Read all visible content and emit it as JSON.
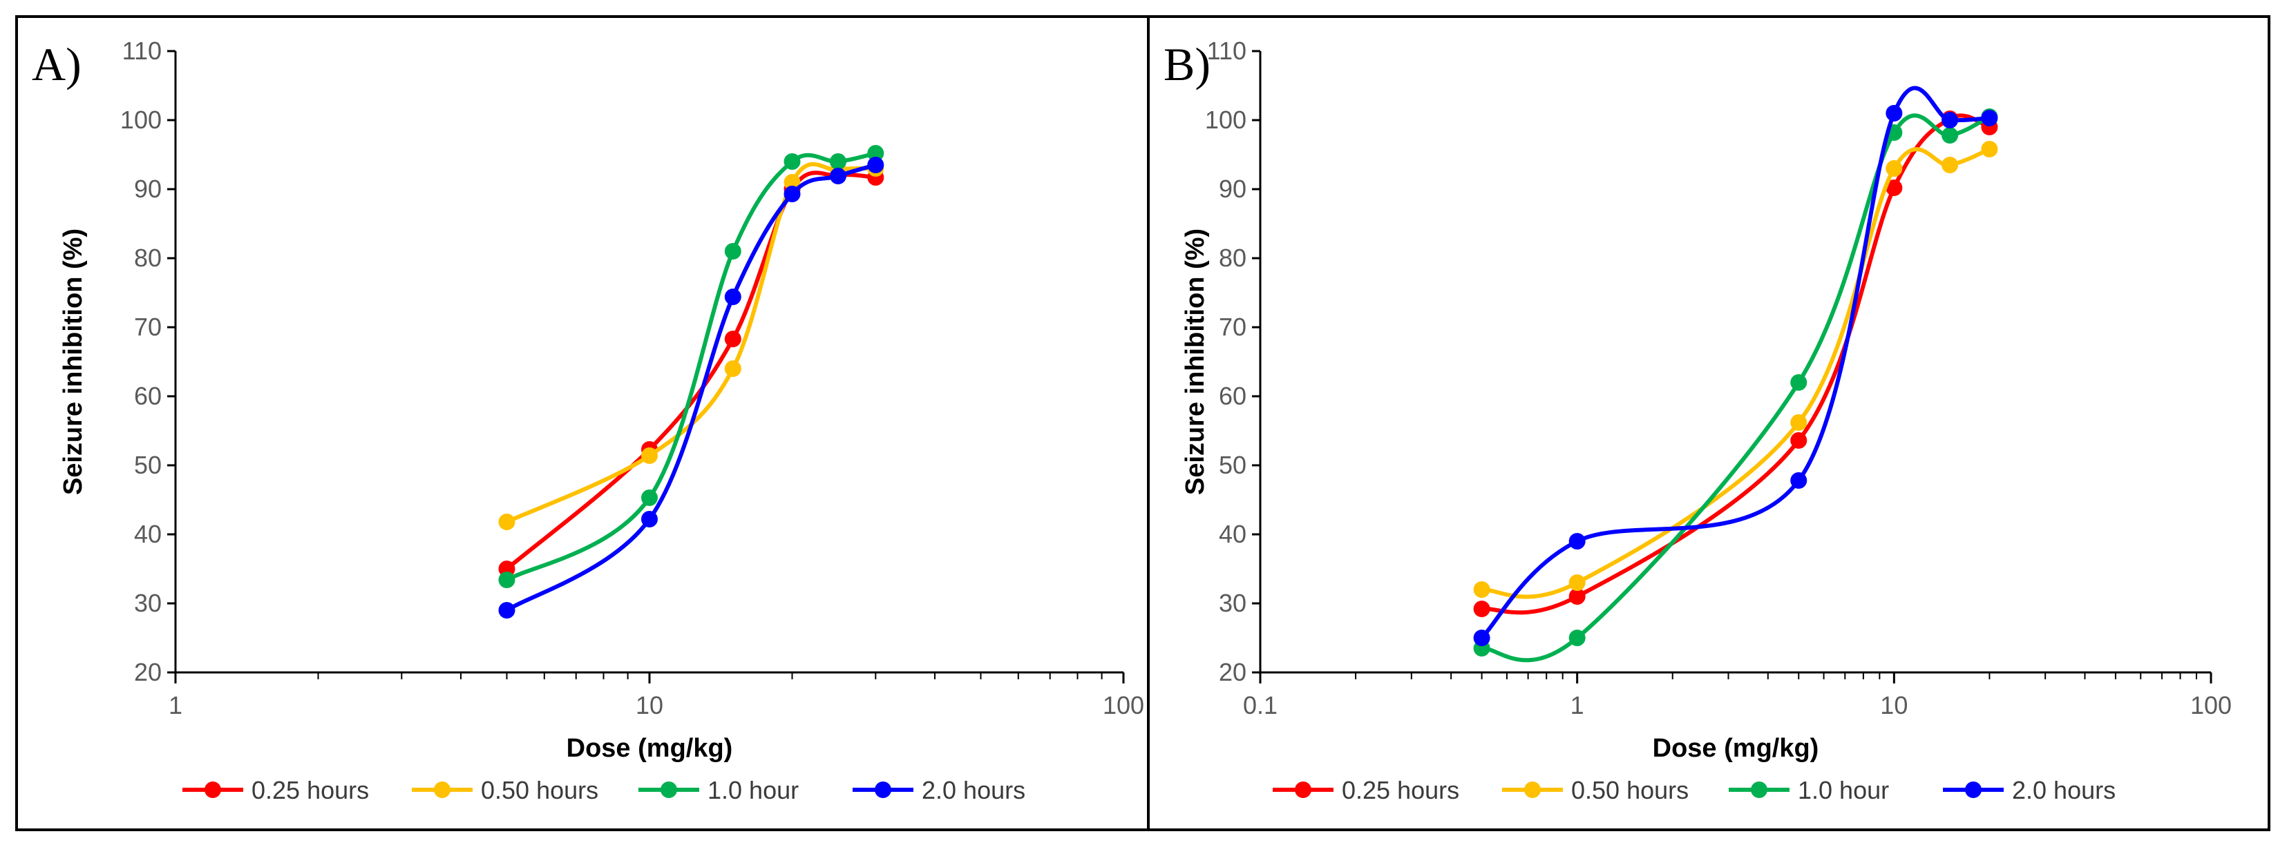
{
  "chart_data": [
    {
      "type": "line",
      "panel_label": "A)",
      "xscale": "log",
      "xlim": [
        1,
        100
      ],
      "ylim": [
        20,
        110
      ],
      "xticks": [
        "1",
        "10",
        "100"
      ],
      "yticks": [
        "20",
        "30",
        "40",
        "50",
        "60",
        "70",
        "80",
        "90",
        "100",
        "110"
      ],
      "xlabel": "Dose (mg/kg)",
      "ylabel": "Seizure inhibition (%)",
      "legend_position": "bottom",
      "series": [
        {
          "name": "0.25 hours",
          "color": "#ff0000",
          "x": [
            5,
            10,
            15,
            20,
            25,
            30
          ],
          "y": [
            35,
            52.3,
            68.3,
            90,
            92,
            91.7
          ]
        },
        {
          "name": "0.50 hours",
          "color": "#ffc000",
          "x": [
            5,
            10,
            15,
            20,
            25,
            30
          ],
          "y": [
            41.8,
            51.4,
            64,
            91,
            92.8,
            93
          ]
        },
        {
          "name": "1.0 hour",
          "color": "#00b050",
          "x": [
            5,
            10,
            15,
            20,
            25,
            30
          ],
          "y": [
            33.4,
            45.3,
            81,
            94,
            94,
            95.2
          ]
        },
        {
          "name": "2.0 hours",
          "color": "#0000ff",
          "x": [
            5,
            10,
            15,
            20,
            25,
            30
          ],
          "y": [
            29,
            42.2,
            74.4,
            89.3,
            91.9,
            93.5
          ]
        }
      ]
    },
    {
      "type": "line",
      "panel_label": "B)",
      "xscale": "log",
      "xlim": [
        0.1,
        100
      ],
      "ylim": [
        20,
        110
      ],
      "xticks": [
        "0.1",
        "1",
        "10",
        "100"
      ],
      "yticks": [
        "20",
        "30",
        "40",
        "50",
        "60",
        "70",
        "80",
        "90",
        "100",
        "110"
      ],
      "xlabel": "Dose (mg/kg)",
      "ylabel": "Seizure inhibition (%)",
      "legend_position": "bottom",
      "series": [
        {
          "name": "0.25 hours",
          "color": "#ff0000",
          "x": [
            0.5,
            1,
            5,
            10,
            15,
            20
          ],
          "y": [
            29.2,
            31,
            53.6,
            90.2,
            100.2,
            99
          ]
        },
        {
          "name": "0.50 hours",
          "color": "#ffc000",
          "x": [
            0.5,
            1,
            5,
            10,
            15,
            20
          ],
          "y": [
            32,
            33,
            56.2,
            93,
            93.5,
            95.8
          ]
        },
        {
          "name": "1.0 hour",
          "color": "#00b050",
          "x": [
            0.5,
            1,
            5,
            10,
            15,
            20
          ],
          "y": [
            23.5,
            25,
            62,
            98.2,
            97.8,
            100.5
          ]
        },
        {
          "name": "2.0 hours",
          "color": "#0000ff",
          "x": [
            0.5,
            1,
            5,
            10,
            15,
            20
          ],
          "y": [
            25,
            39,
            47.8,
            101,
            100,
            100.3
          ]
        }
      ]
    }
  ]
}
